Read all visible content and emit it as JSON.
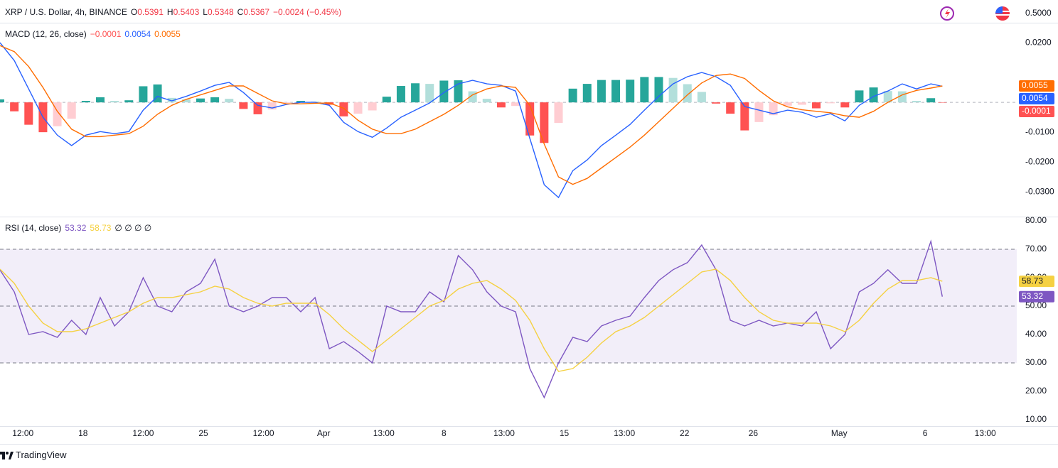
{
  "header": {
    "symbol": "XRP / U.S. Dollar, 4h, BINANCE",
    "ohlc": [
      {
        "label": "O",
        "value": "0.5391"
      },
      {
        "label": "H",
        "value": "0.5403"
      },
      {
        "label": "L",
        "value": "0.5348"
      },
      {
        "label": "C",
        "value": "0.5367"
      }
    ],
    "change": "−0.0024 (−0.45%)",
    "price_axis": "0.5000"
  },
  "footer": {
    "brand": "TradingView"
  },
  "chart_data": [
    {
      "type": "macd",
      "title": "MACD (12, 26, close)",
      "legend_values": [
        "−0.0001",
        "0.0054",
        "0.0055"
      ],
      "x": [
        0,
        5,
        10,
        15,
        20,
        25,
        30,
        35,
        40,
        45,
        50,
        55,
        60,
        65,
        70,
        75,
        80,
        85,
        90,
        95,
        100,
        105,
        110,
        115,
        120,
        125,
        130,
        135,
        140,
        145,
        150,
        155,
        160,
        165,
        170,
        175,
        180,
        185,
        190,
        195,
        200,
        205,
        210,
        215,
        220,
        225,
        230,
        235,
        240,
        245,
        250,
        255,
        260,
        265,
        270,
        275,
        280,
        285,
        290,
        295,
        300,
        305,
        310,
        315,
        320,
        325,
        329
      ],
      "xlim": [
        0,
        355
      ],
      "ylim": [
        -0.0383,
        0.0267
      ],
      "yticks": [
        {
          "value": 0.02,
          "label": "0.0200"
        },
        {
          "value": -0.01,
          "label": "-0.0100"
        },
        {
          "value": -0.02,
          "label": "-0.0200"
        },
        {
          "value": -0.03,
          "label": "-0.0300"
        }
      ],
      "baseline": 0,
      "series": [
        {
          "style": "histogram",
          "colors": [
            "#26a69a",
            "#b2dfdb",
            "#ffcdd2",
            "#ff5252"
          ],
          "values": [
            0.001,
            -0.003,
            -0.0075,
            -0.01,
            -0.008,
            -0.0055,
            0.0005,
            0.0017,
            0.0005,
            0.0007,
            0.0054,
            0.006,
            0.0015,
            0.001,
            0.0013,
            0.0017,
            0.0012,
            -0.0022,
            -0.004,
            -0.0024,
            -0.0002,
            0.0005,
            0.0003,
            -0.0008,
            -0.0047,
            -0.0038,
            -0.0027,
            0.0019,
            0.0055,
            0.0064,
            0.0062,
            0.0073,
            0.0074,
            0.0037,
            0.0012,
            -0.0017,
            -0.0012,
            -0.0111,
            -0.0136,
            -0.0069,
            0.0046,
            0.0062,
            0.0075,
            0.0075,
            0.0076,
            0.0085,
            0.0085,
            0.0082,
            0.0061,
            0.0035,
            -0.0004,
            -0.0038,
            -0.0094,
            -0.0066,
            -0.0043,
            -0.0011,
            -0.0008,
            -0.002,
            -0.0003,
            -0.0017,
            0.004,
            0.005,
            0.0038,
            0.0037,
            0.0005,
            0.0014,
            -0.0001
          ]
        },
        {
          "style": "line",
          "color": "#2962ff",
          "values": [
            0.02,
            0.014,
            0.0045,
            -0.005,
            -0.011,
            -0.0145,
            -0.011,
            -0.0098,
            -0.0105,
            -0.0098,
            -0.0026,
            0.002,
            0.0005,
            0.002,
            0.0038,
            0.0057,
            0.0067,
            0.0033,
            -0.001,
            -0.0019,
            -0.0007,
            0,
            0,
            -0.001,
            -0.0067,
            -0.0098,
            -0.0117,
            -0.0086,
            -0.005,
            -0.0026,
            -0.0002,
            0.0033,
            0.0062,
            0.0074,
            0.0062,
            0.0057,
            0.0038,
            -0.0121,
            -0.0276,
            -0.0319,
            -0.0229,
            -0.0193,
            -0.0145,
            -0.011,
            -0.0074,
            -0.0026,
            0.002,
            0.0062,
            0.0086,
            0.01,
            0.0086,
            0.0057,
            -0.0014,
            -0.0026,
            -0.0038,
            -0.0026,
            -0.0033,
            -0.005,
            -0.0038,
            -0.0062,
            -0.001,
            0.002,
            0.0038,
            0.0062,
            0.0045,
            0.0062,
            0.0054
          ]
        },
        {
          "style": "line",
          "color": "#ff6d00",
          "values": [
            0.019,
            0.017,
            0.012,
            0.005,
            -0.003,
            -0.009,
            -0.0115,
            -0.0115,
            -0.011,
            -0.0105,
            -0.008,
            -0.004,
            -0.001,
            0.001,
            0.0025,
            0.004,
            0.0055,
            0.0055,
            0.003,
            0.0005,
            -0.0005,
            -0.0005,
            -0.0003,
            -0.0002,
            -0.002,
            -0.006,
            -0.009,
            -0.0105,
            -0.0105,
            -0.009,
            -0.0065,
            -0.004,
            -0.001,
            0.0025,
            0.0045,
            0.0055,
            0.005,
            -0.001,
            -0.014,
            -0.025,
            -0.0275,
            -0.0255,
            -0.022,
            -0.0185,
            -0.015,
            -0.011,
            -0.0065,
            -0.002,
            0.0025,
            0.0065,
            0.009,
            0.0095,
            0.008,
            0.004,
            0.0005,
            -0.0015,
            -0.0025,
            -0.003,
            -0.0035,
            -0.0045,
            -0.005,
            -0.003,
            0,
            0.0025,
            0.004,
            0.0048,
            0.0055
          ]
        }
      ]
    },
    {
      "type": "rsi",
      "title": "RSI (14, close)",
      "legend_values": [
        "53.32",
        "58.73",
        "∅ ∅ ∅ ∅"
      ],
      "x": [
        0,
        5,
        10,
        15,
        20,
        25,
        30,
        35,
        40,
        45,
        50,
        55,
        60,
        65,
        70,
        75,
        80,
        85,
        90,
        95,
        100,
        105,
        110,
        115,
        120,
        125,
        130,
        135,
        140,
        145,
        150,
        155,
        160,
        165,
        170,
        175,
        180,
        185,
        190,
        195,
        200,
        205,
        210,
        215,
        220,
        225,
        230,
        235,
        240,
        245,
        250,
        255,
        260,
        265,
        270,
        275,
        280,
        285,
        290,
        295,
        300,
        305,
        310,
        315,
        320,
        325,
        329
      ],
      "xlim": [
        0,
        355
      ],
      "ylim": [
        7.75,
        81.5
      ],
      "yticks": [
        {
          "value": 80,
          "label": "80.00"
        },
        {
          "value": 70,
          "label": "70.00"
        },
        {
          "value": 60,
          "label": "60.00"
        },
        {
          "value": 50,
          "label": "50.00"
        },
        {
          "value": 40,
          "label": "40.00"
        },
        {
          "value": 30,
          "label": "30.00"
        },
        {
          "value": 20,
          "label": "20.00"
        },
        {
          "value": 10,
          "label": "10.00"
        }
      ],
      "xticks": [
        {
          "value": 8,
          "label": "12:00"
        },
        {
          "value": 29,
          "label": "18"
        },
        {
          "value": 50,
          "label": "12:00"
        },
        {
          "value": 71,
          "label": "25"
        },
        {
          "value": 92,
          "label": "12:00"
        },
        {
          "value": 113,
          "label": "Apr"
        },
        {
          "value": 134,
          "label": "13:00"
        },
        {
          "value": 155,
          "label": "8"
        },
        {
          "value": 176,
          "label": "13:00"
        },
        {
          "value": 197,
          "label": "15"
        },
        {
          "value": 218,
          "label": "13:00"
        },
        {
          "value": 239,
          "label": "22"
        },
        {
          "value": 263,
          "label": "26"
        },
        {
          "value": 293,
          "label": "May"
        },
        {
          "value": 323,
          "label": "6"
        },
        {
          "value": 344,
          "label": "13:00"
        }
      ],
      "band_upper": 70,
      "band_middle": 50,
      "band_lower": 30,
      "band_color": "#7e57c2",
      "series": [
        {
          "style": "line",
          "color": "#7e57c2",
          "values": [
            62.7,
            55,
            40,
            41,
            39,
            45,
            40,
            53,
            43,
            48,
            60,
            50,
            48,
            55,
            58,
            66.5,
            50,
            48,
            50,
            53,
            53,
            48,
            53,
            35,
            37.5,
            34,
            30,
            50,
            48,
            48,
            55,
            51.5,
            67.8,
            62.8,
            55,
            50,
            48,
            28,
            17.8,
            30,
            39,
            37.5,
            43,
            45,
            46.5,
            53,
            59,
            62.8,
            65.3,
            71.5,
            62.8,
            45,
            43,
            45,
            43,
            44,
            43,
            48,
            35,
            40,
            55,
            58,
            62.8,
            58,
            58,
            72.8,
            53.32
          ]
        },
        {
          "style": "line",
          "color": "#f5d142",
          "values": [
            63,
            58,
            50,
            44,
            41,
            41,
            42,
            44,
            46,
            48,
            51,
            53,
            53,
            54,
            55,
            57,
            56,
            53,
            51,
            50,
            51,
            51,
            51,
            47,
            42,
            38,
            34,
            38,
            42,
            46,
            50,
            52,
            56,
            58,
            59,
            56,
            52,
            45,
            35,
            27,
            28,
            32,
            37,
            41,
            43,
            46,
            50,
            54,
            58,
            62,
            63,
            59,
            53,
            48,
            45,
            44,
            44,
            44,
            43,
            41,
            45,
            51,
            56,
            59,
            59,
            60,
            58.73
          ]
        }
      ]
    }
  ]
}
